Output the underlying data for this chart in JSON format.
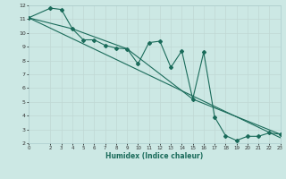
{
  "xlabel": "Humidex (Indice chaleur)",
  "background_color": "#cce8e4",
  "grid_color": "#c0d8d4",
  "line_color": "#1a6b5a",
  "xlim": [
    0,
    23
  ],
  "ylim": [
    2,
    12
  ],
  "xticks": [
    0,
    2,
    3,
    4,
    5,
    6,
    7,
    8,
    9,
    10,
    11,
    12,
    13,
    14,
    15,
    16,
    17,
    18,
    19,
    20,
    21,
    22,
    23
  ],
  "yticks": [
    2,
    3,
    4,
    5,
    6,
    7,
    8,
    9,
    10,
    11,
    12
  ],
  "line1_x": [
    0,
    2,
    3,
    4,
    5,
    6,
    7,
    8,
    9,
    10,
    11,
    12,
    13,
    14,
    15,
    16,
    17,
    18,
    19,
    20,
    21,
    22,
    23
  ],
  "line1_y": [
    11.1,
    11.8,
    11.7,
    10.3,
    9.5,
    9.5,
    9.1,
    8.9,
    8.85,
    7.75,
    9.3,
    9.4,
    7.5,
    8.7,
    5.2,
    8.6,
    3.9,
    2.55,
    2.2,
    2.5,
    2.5,
    2.75,
    2.65
  ],
  "line2_x": [
    0,
    23
  ],
  "line2_y": [
    11.1,
    2.4
  ],
  "line3_x": [
    0,
    4,
    9,
    15,
    23
  ],
  "line3_y": [
    11.1,
    10.3,
    8.85,
    5.2,
    2.65
  ],
  "marker": "D",
  "marker_size": 2,
  "line_width": 0.8
}
